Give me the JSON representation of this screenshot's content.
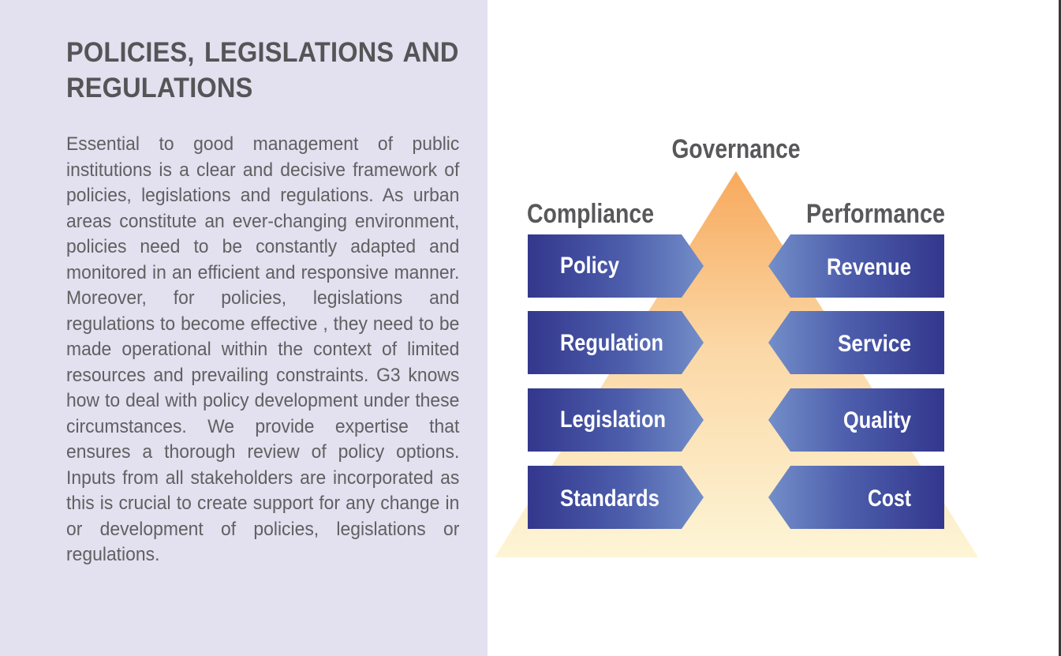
{
  "page": {
    "title": "POLICIES, LEGISLATIONS AND REGULATIONS",
    "body": "Essential to good management of public institutions is a clear and decisive framework of policies, legislations and regulations. As urban areas constitute an ever-changing environment, policies need to be constantly adapted and monitored in an efficient and responsive manner. Moreover, for policies, legislations and regulations to become effective , they need to be made operational within the context of limited resources and prevailing constraints. G3 knows how to deal with policy development under these circumstances. We provide expertise that ensures a thorough review of policy options. Inputs from all stakeholders are incorporated as this is crucial to create support for any change in or development of policies, legislations or regulations."
  },
  "diagram": {
    "top_label": "Governance",
    "left_heading": "Compliance",
    "right_heading": "Performance",
    "left_items": [
      "Policy",
      "Regulation",
      "Legislation",
      "Standards"
    ],
    "right_items": [
      "Revenue",
      "Service",
      "Quality",
      "Cost"
    ]
  },
  "colors": {
    "left_panel_bg": "#e3e0ef",
    "heading_text": "#555557",
    "body_text": "#606062",
    "box_dark": "#35388f",
    "box_light": "#6f8ac6",
    "pyramid_top": "#f7a95c",
    "pyramid_bottom": "#fdf4d2"
  }
}
